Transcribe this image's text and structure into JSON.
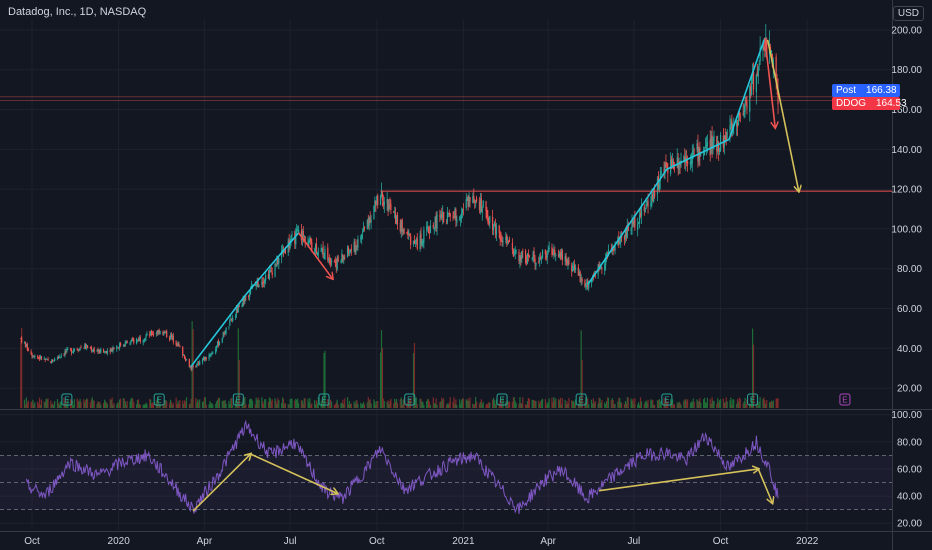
{
  "header": {
    "title": "Datadog, Inc., 1D, NASDAQ",
    "currency": "USD"
  },
  "price_tags": {
    "post_label": "Post",
    "post_value": "166.38",
    "last_label": "DDOG",
    "last_value": "164.53"
  },
  "colors": {
    "background": "#131722",
    "grid": "#1e222d",
    "up": "#26a69a",
    "down": "#ef5350",
    "volume_up": "#1f6b37",
    "volume_down": "#7c2a2a",
    "rsi": "#7e57c2",
    "trend_cyan": "#26c6da",
    "arrow_red": "#ef5350",
    "arrow_yellow": "#d4c15a",
    "resistance": "#ef5350",
    "earnings_badge": "#26a69a",
    "earnings_future": "#ab47bc"
  },
  "chart_data": [
    {
      "type": "candlestick",
      "name": "price",
      "ticks": [
        200,
        180,
        160,
        140,
        120,
        100,
        80,
        60,
        40,
        20
      ],
      "tick_labels": [
        "200.00",
        "180.00",
        "160.00",
        "140.00",
        "120.00",
        "100.00",
        "80.00",
        "60.00",
        "40.00",
        "20.00"
      ],
      "ylim": [
        10,
        205
      ],
      "resistance_level": 119,
      "horizontal_levels": [
        164.5,
        166.4
      ],
      "price_path": [
        [
          "2019-09-19",
          45
        ],
        [
          "2019-10-01",
          37
        ],
        [
          "2019-10-20",
          33
        ],
        [
          "2019-11-05",
          38
        ],
        [
          "2019-11-25",
          41
        ],
        [
          "2019-12-15",
          38
        ],
        [
          "2020-01-05",
          42
        ],
        [
          "2020-01-25",
          45
        ],
        [
          "2020-02-14",
          49
        ],
        [
          "2020-03-01",
          44
        ],
        [
          "2020-03-18",
          30
        ],
        [
          "2020-04-10",
          38
        ],
        [
          "2020-05-01",
          55
        ],
        [
          "2020-05-20",
          70
        ],
        [
          "2020-06-10",
          78
        ],
        [
          "2020-06-25",
          90
        ],
        [
          "2020-07-10",
          98
        ],
        [
          "2020-07-30",
          90
        ],
        [
          "2020-08-20",
          83
        ],
        [
          "2020-09-10",
          92
        ],
        [
          "2020-10-05",
          118
        ],
        [
          "2020-10-25",
          102
        ],
        [
          "2020-11-12",
          92
        ],
        [
          "2020-12-05",
          105
        ],
        [
          "2020-12-28",
          108
        ],
        [
          "2021-01-12",
          118
        ],
        [
          "2021-02-05",
          100
        ],
        [
          "2021-02-25",
          87
        ],
        [
          "2021-03-20",
          85
        ],
        [
          "2021-04-10",
          90
        ],
        [
          "2021-05-12",
          72
        ],
        [
          "2021-06-05",
          88
        ],
        [
          "2021-06-25",
          100
        ],
        [
          "2021-07-15",
          112
        ],
        [
          "2021-08-05",
          132
        ],
        [
          "2021-08-25",
          136
        ],
        [
          "2021-09-15",
          140
        ],
        [
          "2021-10-05",
          145
        ],
        [
          "2021-10-25",
          160
        ],
        [
          "2021-11-08",
          180
        ],
        [
          "2021-11-17",
          196
        ],
        [
          "2021-11-24",
          185
        ],
        [
          "2021-12-01",
          164.5
        ]
      ],
      "volume_spikes": [
        "2019-09-19",
        "2020-03-20",
        "2020-05-08",
        "2020-08-07",
        "2020-10-06",
        "2020-11-09",
        "2021-05-07",
        "2021-11-05"
      ],
      "earnings_markers": [
        "2019-11-07",
        "2020-02-13",
        "2020-05-07",
        "2020-08-06",
        "2020-11-05",
        "2021-02-11",
        "2021-05-06",
        "2021-08-05",
        "2021-11-04"
      ],
      "future_earnings_marker": "2022-02-10",
      "earnings_label": "E",
      "trendlines": [
        {
          "from": [
            "2020-03-18",
            31
          ],
          "to": [
            "2020-05-15",
            67
          ]
        },
        {
          "from": [
            "2020-05-15",
            67
          ],
          "to": [
            "2020-07-10",
            98
          ]
        },
        {
          "from": [
            "2021-05-13",
            72
          ],
          "to": [
            "2021-08-05",
            130
          ]
        },
        {
          "from": [
            "2021-08-05",
            130
          ],
          "to": [
            "2021-10-10",
            145
          ]
        },
        {
          "from": [
            "2021-10-10",
            145
          ],
          "to": [
            "2021-11-17",
            196
          ]
        }
      ],
      "arrows": [
        {
          "color": "red",
          "from": [
            "2020-07-10",
            98
          ],
          "to": [
            "2020-08-15",
            75
          ]
        },
        {
          "color": "red",
          "from": [
            "2021-11-17",
            196
          ],
          "to": [
            "2021-11-28",
            151
          ]
        },
        {
          "color": "yellow",
          "from": [
            "2021-11-20",
            195
          ],
          "to": [
            "2021-12-23",
            119
          ]
        }
      ]
    },
    {
      "type": "line",
      "name": "rsi",
      "ticks": [
        100,
        80,
        60,
        40,
        20
      ],
      "tick_labels": [
        "100.00",
        "80.00",
        "60.00",
        "40.00",
        "20.00"
      ],
      "ylim": [
        15,
        102
      ],
      "bands": [
        30,
        50,
        70
      ],
      "rsi_path": [
        [
          "2019-09-25",
          48
        ],
        [
          "2019-10-15",
          40
        ],
        [
          "2019-11-10",
          65
        ],
        [
          "2019-12-10",
          55
        ],
        [
          "2020-01-05",
          65
        ],
        [
          "2020-02-01",
          70
        ],
        [
          "2020-02-20",
          55
        ],
        [
          "2020-03-20",
          30
        ],
        [
          "2020-04-15",
          55
        ],
        [
          "2020-05-15",
          92
        ],
        [
          "2020-06-10",
          70
        ],
        [
          "2020-07-05",
          80
        ],
        [
          "2020-08-05",
          45
        ],
        [
          "2020-08-25",
          38
        ],
        [
          "2020-09-20",
          60
        ],
        [
          "2020-10-05",
          75
        ],
        [
          "2020-10-30",
          45
        ],
        [
          "2020-11-25",
          55
        ],
        [
          "2020-12-20",
          65
        ],
        [
          "2021-01-12",
          70
        ],
        [
          "2021-02-10",
          45
        ],
        [
          "2021-03-01",
          30
        ],
        [
          "2021-03-25",
          50
        ],
        [
          "2021-04-15",
          60
        ],
        [
          "2021-05-12",
          38
        ],
        [
          "2021-06-10",
          55
        ],
        [
          "2021-07-10",
          70
        ],
        [
          "2021-08-05",
          72
        ],
        [
          "2021-08-25",
          66
        ],
        [
          "2021-09-15",
          85
        ],
        [
          "2021-10-10",
          60
        ],
        [
          "2021-11-08",
          80
        ],
        [
          "2021-11-22",
          60
        ],
        [
          "2021-12-01",
          40
        ]
      ],
      "arrows": [
        {
          "from": [
            "2020-03-20",
            29
          ],
          "to": [
            "2020-05-20",
            71
          ]
        },
        {
          "from": [
            "2020-05-20",
            71
          ],
          "to": [
            "2020-08-20",
            42
          ]
        },
        {
          "from": [
            "2021-05-25",
            44
          ],
          "to": [
            "2021-11-10",
            60
          ]
        },
        {
          "from": [
            "2021-11-10",
            60
          ],
          "to": [
            "2021-11-25",
            35
          ]
        }
      ]
    }
  ],
  "x_axis": {
    "ticks": [
      {
        "date": "2019-10-01",
        "label": "Oct"
      },
      {
        "date": "2020-01-01",
        "label": "2020"
      },
      {
        "date": "2020-04-01",
        "label": "Apr"
      },
      {
        "date": "2020-07-01",
        "label": "Jul"
      },
      {
        "date": "2020-10-01",
        "label": "Oct"
      },
      {
        "date": "2021-01-01",
        "label": "2021"
      },
      {
        "date": "2021-04-01",
        "label": "Apr"
      },
      {
        "date": "2021-07-01",
        "label": "Jul"
      },
      {
        "date": "2021-10-01",
        "label": "Oct"
      },
      {
        "date": "2022-01-01",
        "label": "2022"
      }
    ],
    "range": [
      "2019-08-28",
      "2022-04-01"
    ]
  }
}
